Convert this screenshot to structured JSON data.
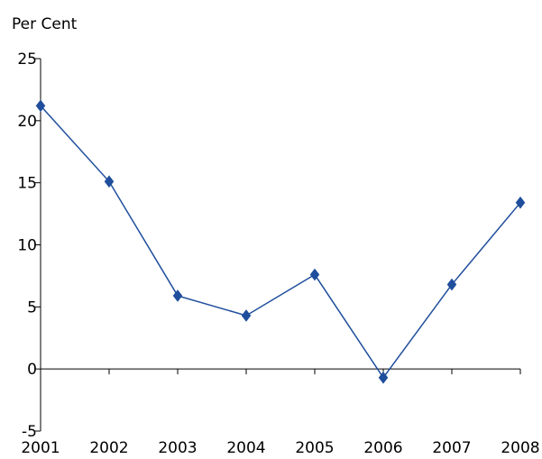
{
  "chart_data": {
    "type": "line",
    "title": "",
    "ylabel": "Per Cent",
    "xlabel": "",
    "categories": [
      "2001",
      "2002",
      "2003",
      "2004",
      "2005",
      "2006",
      "2007",
      "2008"
    ],
    "series": [
      {
        "values": [
          21.2,
          15.1,
          5.9,
          4.3,
          7.6,
          -0.7,
          6.8,
          13.4
        ],
        "color": "#1f4e9c",
        "marker": "diamond"
      }
    ],
    "yticks": [
      "-5",
      "0",
      "5",
      "10",
      "15",
      "20",
      "25"
    ],
    "ylim": [
      -5,
      25
    ],
    "grid": false,
    "legend": "none"
  }
}
